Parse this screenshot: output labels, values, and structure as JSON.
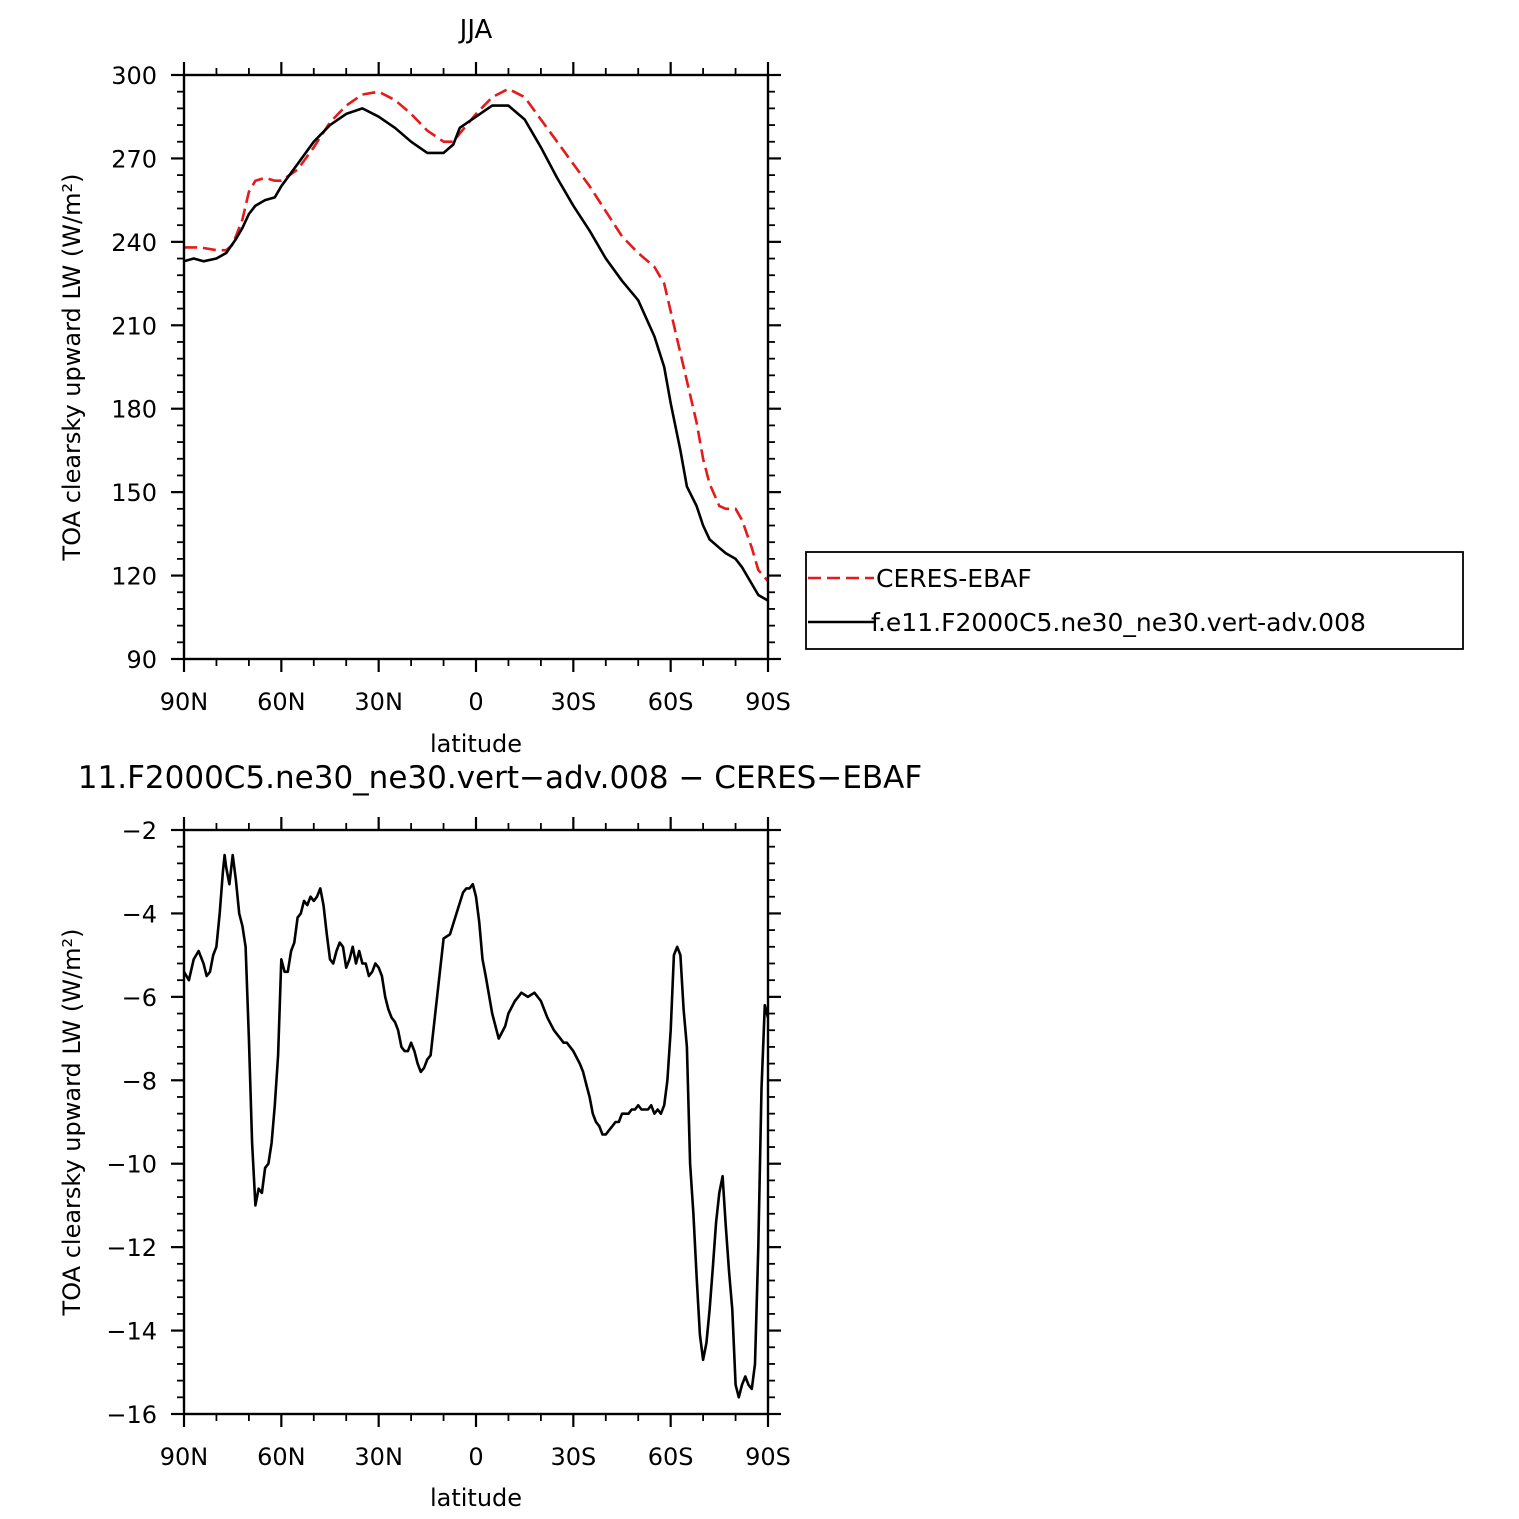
{
  "colors": {
    "ceres": "#e41a1c",
    "model": "#000000",
    "axis": "#000000"
  },
  "chart_data": [
    {
      "type": "line",
      "title": "JJA",
      "xlabel": "latitude",
      "ylabel": "TOA clearsky upward LW (W/m²)",
      "xlim": [
        90,
        -90
      ],
      "ylim": [
        90,
        300
      ],
      "xticks": [
        90,
        60,
        30,
        0,
        -30,
        -60,
        -90
      ],
      "xticklabels": [
        "90N",
        "60N",
        "30N",
        "0",
        "30S",
        "60S",
        "90S"
      ],
      "yticks": [
        90,
        120,
        150,
        180,
        210,
        240,
        270,
        300
      ],
      "yticklabels": [
        "90",
        "120",
        "150",
        "180",
        "210",
        "240",
        "270",
        "300"
      ],
      "legend": {
        "position": "right",
        "entries": [
          "CERES-EBAF",
          "f.e11.F2000C5.ne30_ne30.vert-adv.008"
        ]
      },
      "series": [
        {
          "name": "CERES-EBAF",
          "style": "dashed",
          "x": [
            90,
            85,
            80,
            77,
            75,
            72,
            70,
            68,
            65,
            62,
            60,
            55,
            50,
            45,
            40,
            35,
            30,
            25,
            20,
            15,
            10,
            7,
            5,
            0,
            -5,
            -10,
            -15,
            -20,
            -25,
            -30,
            -35,
            -40,
            -45,
            -50,
            -55,
            -58,
            -60,
            -63,
            -65,
            -68,
            -70,
            -72,
            -75,
            -77,
            -80,
            -82,
            -85,
            -87,
            -90
          ],
          "y": [
            238,
            238,
            237,
            237,
            239,
            248,
            258,
            262,
            263,
            262,
            262,
            266,
            274,
            283,
            289,
            293,
            294,
            291,
            286,
            280,
            276,
            276,
            279,
            286,
            292,
            295,
            292,
            284,
            276,
            268,
            260,
            251,
            242,
            236,
            231,
            225,
            215,
            200,
            190,
            175,
            162,
            153,
            145,
            144,
            144,
            140,
            130,
            122,
            118
          ]
        },
        {
          "name": "f.e11.F2000C5.ne30_ne30.vert-adv.008",
          "style": "solid",
          "x": [
            90,
            87,
            84,
            80,
            77,
            74,
            72,
            70,
            68,
            65,
            62,
            60,
            55,
            50,
            45,
            40,
            35,
            30,
            25,
            20,
            15,
            10,
            7,
            5,
            0,
            -5,
            -10,
            -15,
            -20,
            -25,
            -30,
            -35,
            -40,
            -45,
            -50,
            -55,
            -58,
            -60,
            -63,
            -65,
            -68,
            -70,
            -72,
            -75,
            -77,
            -80,
            -82,
            -85,
            -87,
            -90
          ],
          "y": [
            233,
            234,
            233,
            234,
            236,
            241,
            245,
            250,
            253,
            255,
            256,
            260,
            268,
            276,
            282,
            286,
            288,
            285,
            281,
            276,
            272,
            272,
            275,
            281,
            285,
            289,
            289,
            284,
            274,
            263,
            253,
            244,
            234,
            226,
            219,
            206,
            195,
            182,
            165,
            152,
            145,
            138,
            133,
            130,
            128,
            126,
            123,
            117,
            113,
            111
          ]
        }
      ]
    },
    {
      "type": "line",
      "title": "11.F2000C5.ne30_ne30.vert−adv.008 − CERES−EBAF",
      "xlabel": "latitude",
      "ylabel": "TOA clearsky upward LW (W/m²)",
      "xlim": [
        90,
        -90
      ],
      "ylim": [
        -16,
        -2
      ],
      "xticks": [
        90,
        60,
        30,
        0,
        -30,
        -60,
        -90
      ],
      "xticklabels": [
        "90N",
        "60N",
        "30N",
        "0",
        "30S",
        "60S",
        "90S"
      ],
      "yticks": [
        -16,
        -14,
        -12,
        -10,
        -8,
        -6,
        -4,
        -2
      ],
      "yticklabels": [
        "−16",
        "−14",
        "−12",
        "−10",
        "−8",
        "−6",
        "−4",
        "−2"
      ],
      "series": [
        {
          "name": "f.e11.F2000C5.ne30_ne30.vert-adv.008 − CERES-EBAF",
          "style": "solid",
          "x": [
            90,
            88.5,
            87,
            85.5,
            84,
            83,
            82,
            81,
            80,
            79,
            78,
            77.5,
            77,
            76,
            75,
            74,
            73,
            72,
            71,
            70,
            69,
            68,
            67,
            66,
            65,
            64,
            63,
            62,
            61,
            60,
            59,
            58,
            57,
            56,
            55,
            54,
            53,
            52,
            51,
            50,
            49,
            48,
            47,
            46,
            45,
            44,
            43,
            42,
            41,
            40,
            39,
            38,
            37,
            36,
            35,
            34,
            33,
            32,
            31,
            30,
            29,
            28,
            27,
            26,
            25,
            24,
            23,
            22,
            21,
            20,
            19,
            18,
            17,
            16,
            15,
            14,
            12,
            10,
            8,
            6,
            4,
            3,
            2,
            1,
            0,
            -1,
            -2,
            -3,
            -5,
            -7,
            -9,
            -10,
            -12,
            -13,
            -14,
            -16,
            -18,
            -20,
            -22,
            -24,
            -26,
            -27,
            -28,
            -29,
            -30,
            -32,
            -33,
            -34,
            -35,
            -36,
            -37,
            -38,
            -39,
            -40,
            -41,
            -42,
            -43,
            -44,
            -45,
            -46,
            -47,
            -48,
            -49,
            -50,
            -51,
            -52,
            -53,
            -54,
            -55,
            -56,
            -57,
            -58,
            -59,
            -60,
            -61,
            -62,
            -63,
            -64,
            -65,
            -66,
            -67,
            -68,
            -69,
            -70,
            -71,
            -72,
            -73,
            -74,
            -75,
            -76,
            -77,
            -78,
            -79,
            -80,
            -81,
            -82,
            -83,
            -84,
            -85,
            -86,
            -87,
            -88,
            -89,
            -90
          ],
          "y": [
            -5.4,
            -5.6,
            -5.1,
            -4.9,
            -5.2,
            -5.5,
            -5.4,
            -5.0,
            -4.8,
            -4.0,
            -3.0,
            -2.6,
            -2.9,
            -3.3,
            -2.6,
            -3.2,
            -4.0,
            -4.3,
            -4.8,
            -7.0,
            -9.5,
            -11.0,
            -10.6,
            -10.7,
            -10.1,
            -10.0,
            -9.5,
            -8.6,
            -7.4,
            -5.1,
            -5.4,
            -5.4,
            -4.9,
            -4.7,
            -4.1,
            -4.0,
            -3.7,
            -3.8,
            -3.6,
            -3.7,
            -3.6,
            -3.4,
            -3.8,
            -4.5,
            -5.1,
            -5.2,
            -4.9,
            -4.7,
            -4.8,
            -5.3,
            -5.1,
            -4.8,
            -5.2,
            -4.9,
            -5.2,
            -5.2,
            -5.5,
            -5.4,
            -5.2,
            -5.3,
            -5.5,
            -6.0,
            -6.3,
            -6.5,
            -6.6,
            -6.8,
            -7.2,
            -7.3,
            -7.3,
            -7.1,
            -7.3,
            -7.6,
            -7.8,
            -7.7,
            -7.5,
            -7.4,
            -6.0,
            -4.6,
            -4.5,
            -4.0,
            -3.5,
            -3.4,
            -3.4,
            -3.3,
            -3.6,
            -4.2,
            -5.1,
            -5.5,
            -6.4,
            -7.0,
            -6.7,
            -6.4,
            -6.1,
            -6.0,
            -5.9,
            -6.0,
            -5.9,
            -6.1,
            -6.5,
            -6.8,
            -7.0,
            -7.1,
            -7.1,
            -7.2,
            -7.3,
            -7.6,
            -7.8,
            -8.1,
            -8.4,
            -8.8,
            -9.0,
            -9.1,
            -9.3,
            -9.3,
            -9.2,
            -9.1,
            -9.0,
            -9.0,
            -8.8,
            -8.8,
            -8.8,
            -8.7,
            -8.7,
            -8.6,
            -8.7,
            -8.7,
            -8.7,
            -8.6,
            -8.8,
            -8.7,
            -8.8,
            -8.6,
            -8.0,
            -6.8,
            -5.0,
            -4.8,
            -5.0,
            -6.3,
            -7.2,
            -10.0,
            -11.2,
            -12.7,
            -14.1,
            -14.7,
            -14.3,
            -13.5,
            -12.5,
            -11.4,
            -10.7,
            -10.3,
            -11.5,
            -12.6,
            -13.5,
            -15.3,
            -15.6,
            -15.3,
            -15.1,
            -15.3,
            -15.4,
            -14.8,
            -12.0,
            -8.2,
            -6.2,
            -6.5
          ]
        }
      ]
    }
  ]
}
